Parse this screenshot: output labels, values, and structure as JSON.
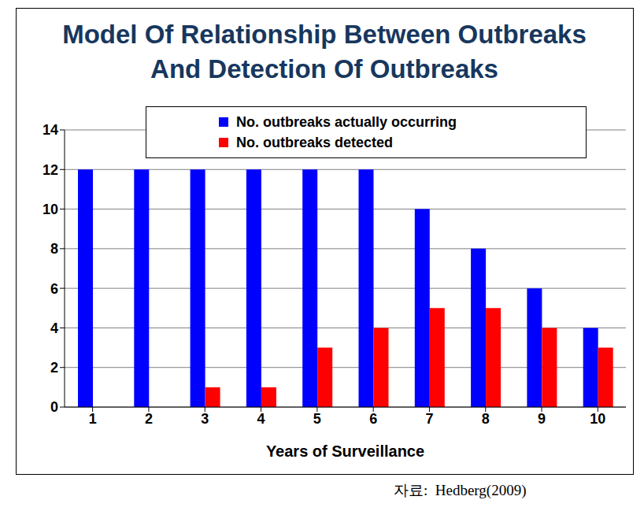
{
  "chart_data": {
    "type": "bar",
    "title": "Model Of Relationship Between Outbreaks And Detection Of Outbreaks",
    "source": "자료:  Hedberg(2009)",
    "x_label": "Years of Surveillance",
    "categories": [
      "1",
      "2",
      "3",
      "4",
      "5",
      "6",
      "7",
      "8",
      "9",
      "10"
    ],
    "series": [
      {
        "name": "No. outbreaks actually occurring",
        "color": "#0000ff",
        "values": [
          12,
          12,
          12,
          12,
          12,
          12,
          10,
          8,
          6,
          4
        ]
      },
      {
        "name": "No. outbreaks detected",
        "color": "#ff0000",
        "values": [
          0,
          0,
          1,
          1,
          3,
          4,
          5,
          5,
          4,
          3
        ]
      }
    ],
    "ylim": [
      0,
      14
    ],
    "yticks": [
      0,
      2,
      4,
      6,
      8,
      10,
      12,
      14
    ],
    "grid": true,
    "legend": "top"
  }
}
